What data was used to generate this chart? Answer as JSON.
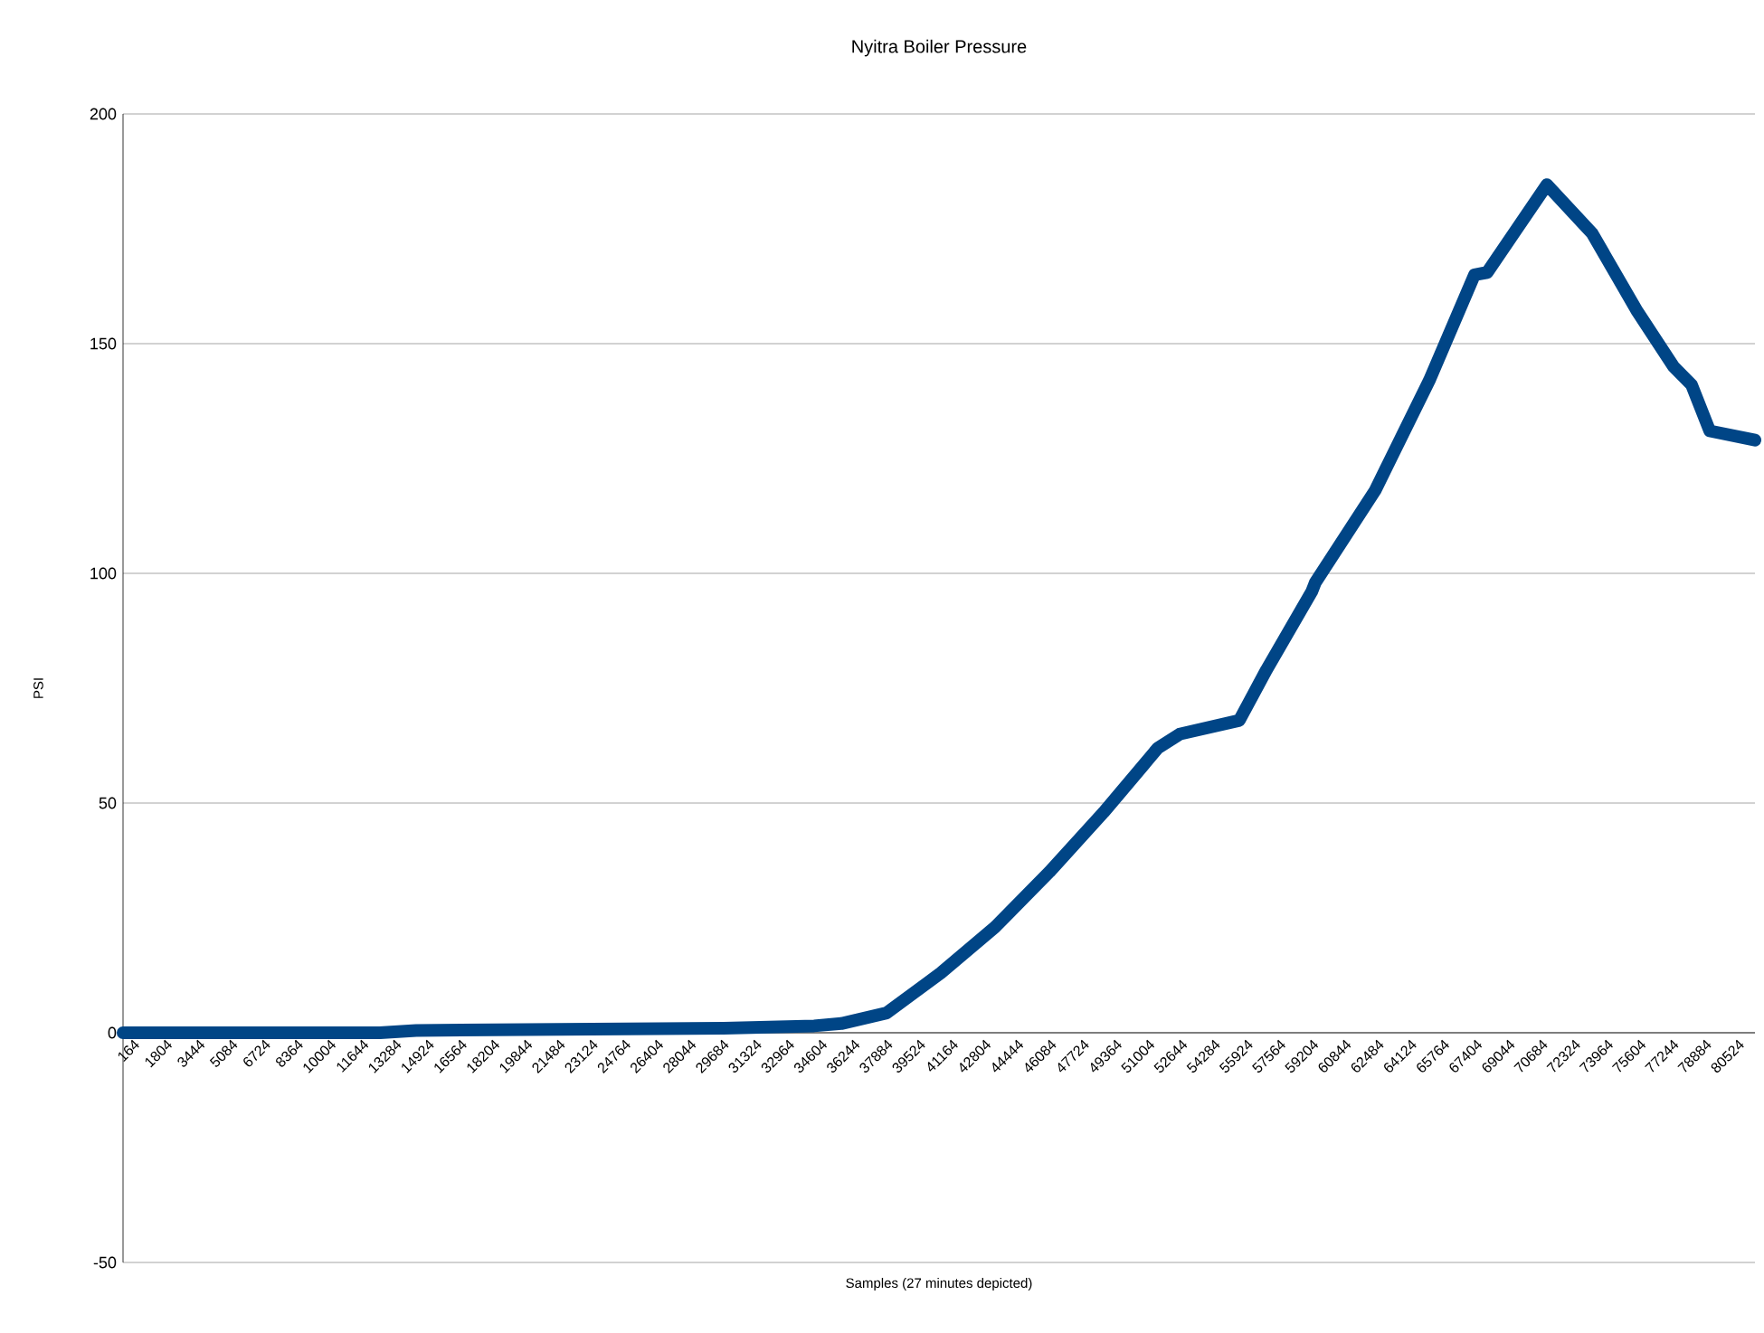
{
  "chart_data": {
    "type": "line",
    "title": "Nyitra Boiler Pressure",
    "xlabel": "Samples (27 minutes depicted)",
    "ylabel": "PSI",
    "x": [
      164,
      13029,
      14841,
      30242,
      34772,
      36132,
      38397,
      41115,
      43833,
      46551,
      49269,
      51987,
      53074,
      56064,
      57423,
      59688,
      59869,
      62859,
      65577,
      67842,
      68476,
      71466,
      73731,
      75996,
      77808,
      78714,
      79620,
      81885
    ],
    "series": [
      {
        "color": "#004586",
        "values": [
          0,
          0,
          0.5,
          1,
          1.5,
          2,
          4.3,
          13,
          23,
          35,
          48,
          62,
          65,
          68,
          79,
          96,
          98,
          118,
          142,
          165,
          165.5,
          184.6,
          174,
          157,
          145,
          141,
          131,
          129
        ]
      }
    ],
    "xlim": [
      164,
      81885
    ],
    "xticks": [
      164,
      1804,
      3444,
      5084,
      6724,
      8364,
      10004,
      11644,
      13284,
      14924,
      16564,
      18204,
      19844,
      21484,
      23124,
      24764,
      26404,
      28044,
      29684,
      31324,
      32964,
      34604,
      36244,
      37884,
      39524,
      41164,
      42804,
      44444,
      46084,
      47724,
      49364,
      51004,
      52644,
      54284,
      55924,
      57564,
      59204,
      60844,
      62484,
      64124,
      65764,
      67404,
      69044,
      70684,
      72324,
      73964,
      75604,
      77244,
      78884,
      80524
    ],
    "ylim": [
      -50,
      200
    ],
    "yticks": [
      -50,
      0,
      50,
      100,
      150,
      200
    ],
    "grid": "y",
    "marker": "none",
    "line_style": "solid"
  }
}
